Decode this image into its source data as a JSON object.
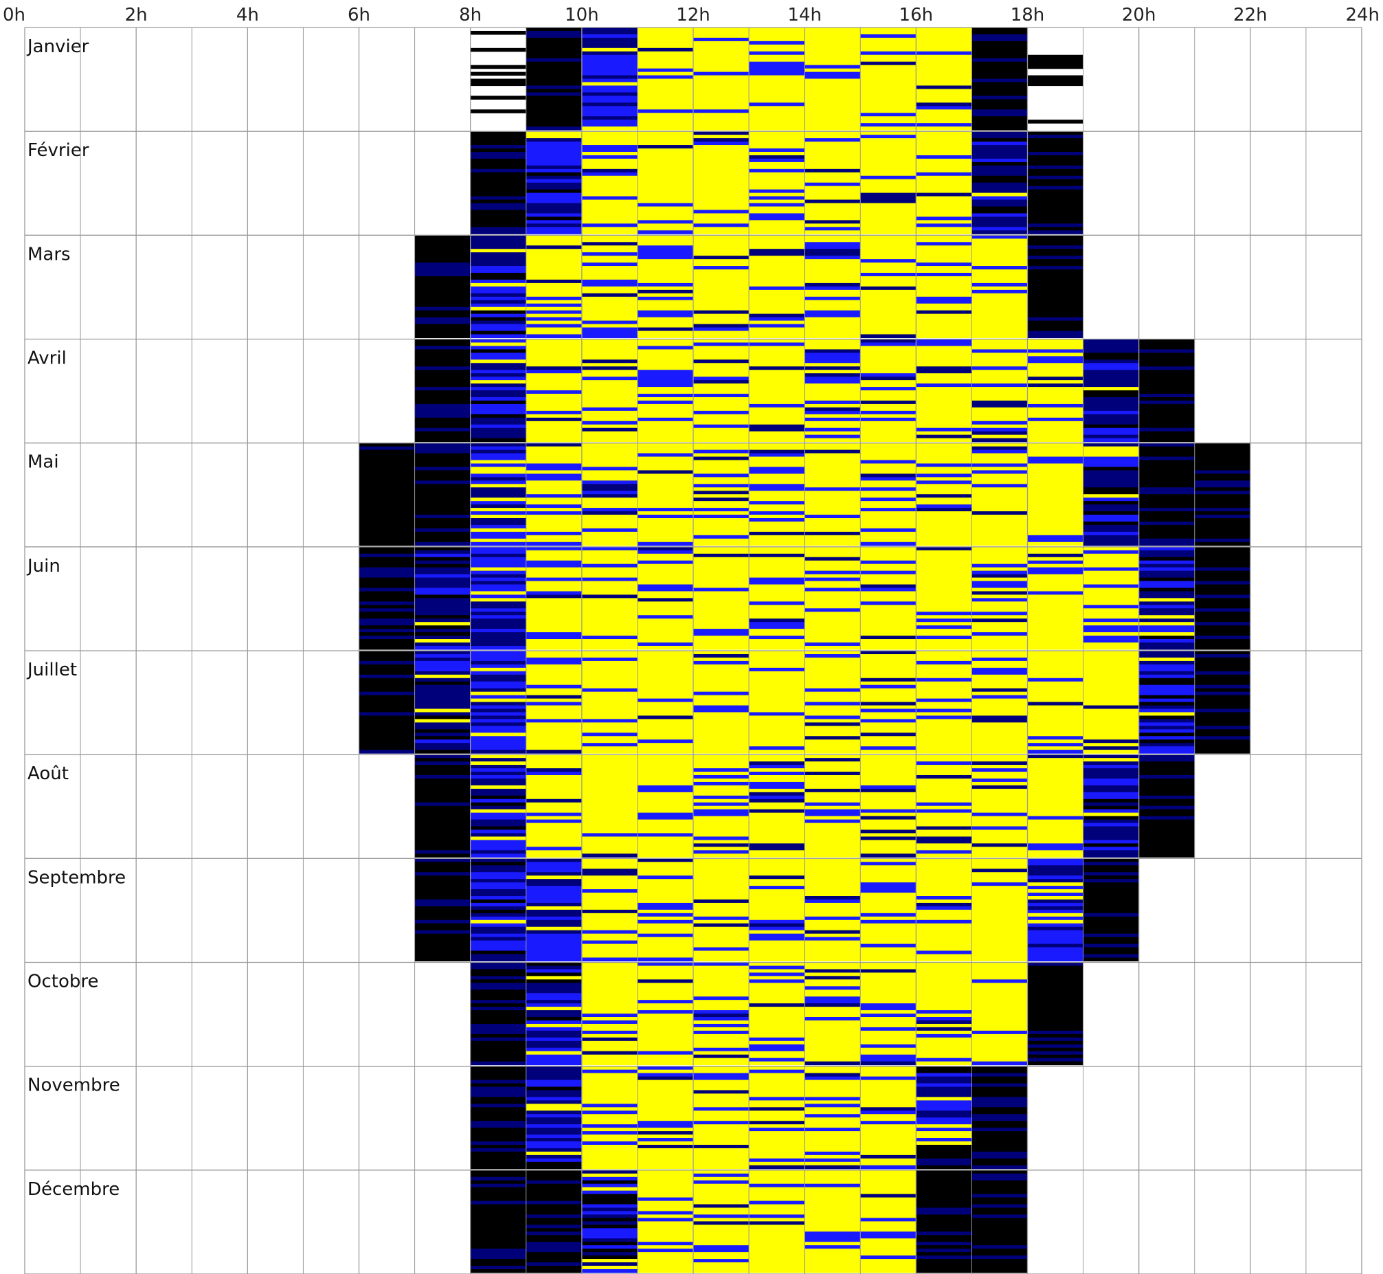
{
  "chart_data": {
    "type": "heatmap",
    "x_ticks": [
      "0h",
      "2h",
      "4h",
      "6h",
      "8h",
      "10h",
      "12h",
      "14h",
      "16h",
      "18h",
      "20h",
      "22h",
      "24h"
    ],
    "xlim": [
      0,
      24
    ],
    "months": [
      "Janvier",
      "Février",
      "Mars",
      "Avril",
      "Mai",
      "Juin",
      "Juillet",
      "Août",
      "Septembre",
      "Octobre",
      "Novembre",
      "Décembre"
    ],
    "days_per_year": 365,
    "grid": true,
    "colors": {
      "sun": "#ffff00",
      "cloudy": "#1a1aff",
      "dark": "#000000",
      "twilight": "#00007a",
      "grid": "#9a9a9a"
    },
    "hourly_profile": [
      {
        "month": "Janvier",
        "hours": {
          "8": "night",
          "9": "dark",
          "10": "cloudy",
          "11": "sun",
          "12": "sun",
          "13": "sun",
          "14": "sun",
          "15": "sun",
          "16": "sun",
          "17": "dark",
          "18": "night"
        }
      },
      {
        "month": "Février",
        "hours": {
          "8": "dark",
          "9": "twilight",
          "10": "sun",
          "11": "sun",
          "12": "sun",
          "13": "sun",
          "14": "sun",
          "15": "sun",
          "16": "sun",
          "17": "twilight",
          "18": "dark"
        }
      },
      {
        "month": "Mars",
        "hours": {
          "7": "dark",
          "8": "twilight",
          "9": "sun",
          "10": "sun",
          "11": "sun",
          "12": "sun",
          "13": "sun",
          "14": "sun",
          "15": "sun",
          "16": "sun",
          "17": "sun",
          "18": "dark"
        }
      },
      {
        "month": "Avril",
        "hours": {
          "7": "dark",
          "8": "twilight",
          "9": "sun",
          "10": "sun",
          "11": "sun",
          "12": "sun",
          "13": "sun",
          "14": "sun",
          "15": "sun",
          "16": "sun",
          "17": "sun",
          "18": "sun",
          "19": "twilight",
          "20": "dark"
        }
      },
      {
        "month": "Mai",
        "hours": {
          "6": "dark",
          "7": "dark",
          "8": "cloudy",
          "9": "sun",
          "10": "sun",
          "11": "sun",
          "12": "sun",
          "13": "sun",
          "14": "sun",
          "15": "sun",
          "16": "sun",
          "17": "sun",
          "18": "sun",
          "19": "twilight",
          "20": "dark",
          "21": "dark"
        }
      },
      {
        "month": "Juin",
        "hours": {
          "6": "dark",
          "7": "twilight",
          "8": "cloudy",
          "9": "sun",
          "10": "sun",
          "11": "sun",
          "12": "sun",
          "13": "sun",
          "14": "sun",
          "15": "sun",
          "16": "sun",
          "17": "sun",
          "18": "sun",
          "19": "sun",
          "20": "twilight",
          "21": "dark"
        }
      },
      {
        "month": "Juillet",
        "hours": {
          "6": "dark",
          "7": "twilight",
          "8": "cloudy",
          "9": "sun",
          "10": "sun",
          "11": "sun",
          "12": "sun",
          "13": "sun",
          "14": "sun",
          "15": "sun",
          "16": "sun",
          "17": "sun",
          "18": "sun",
          "19": "sun",
          "20": "twilight",
          "21": "dark"
        }
      },
      {
        "month": "Août",
        "hours": {
          "7": "dark",
          "8": "twilight",
          "9": "sun",
          "10": "sun",
          "11": "sun",
          "12": "sun",
          "13": "sun",
          "14": "sun",
          "15": "sun",
          "16": "sun",
          "17": "sun",
          "18": "sun",
          "19": "twilight",
          "20": "dark"
        }
      },
      {
        "month": "Septembre",
        "hours": {
          "7": "dark",
          "8": "twilight",
          "9": "cloudy",
          "10": "sun",
          "11": "sun",
          "12": "sun",
          "13": "sun",
          "14": "sun",
          "15": "sun",
          "16": "sun",
          "17": "sun",
          "18": "cloudy",
          "19": "dark"
        }
      },
      {
        "month": "Octobre",
        "hours": {
          "8": "dark",
          "9": "twilight",
          "10": "sun",
          "11": "sun",
          "12": "sun",
          "13": "sun",
          "14": "sun",
          "15": "sun",
          "16": "sun",
          "17": "sun",
          "18": "dark"
        }
      },
      {
        "month": "Novembre",
        "hours": {
          "8": "dark",
          "9": "twilight",
          "10": "sun",
          "11": "sun",
          "12": "sun",
          "13": "sun",
          "14": "sun",
          "15": "sun",
          "16": "twilight",
          "17": "dark"
        }
      },
      {
        "month": "Décembre",
        "hours": {
          "8": "dark",
          "9": "dark",
          "10": "twilight",
          "11": "sun",
          "12": "sun",
          "13": "sun",
          "14": "sun",
          "15": "sun",
          "16": "dark",
          "17": "dark"
        }
      }
    ]
  }
}
